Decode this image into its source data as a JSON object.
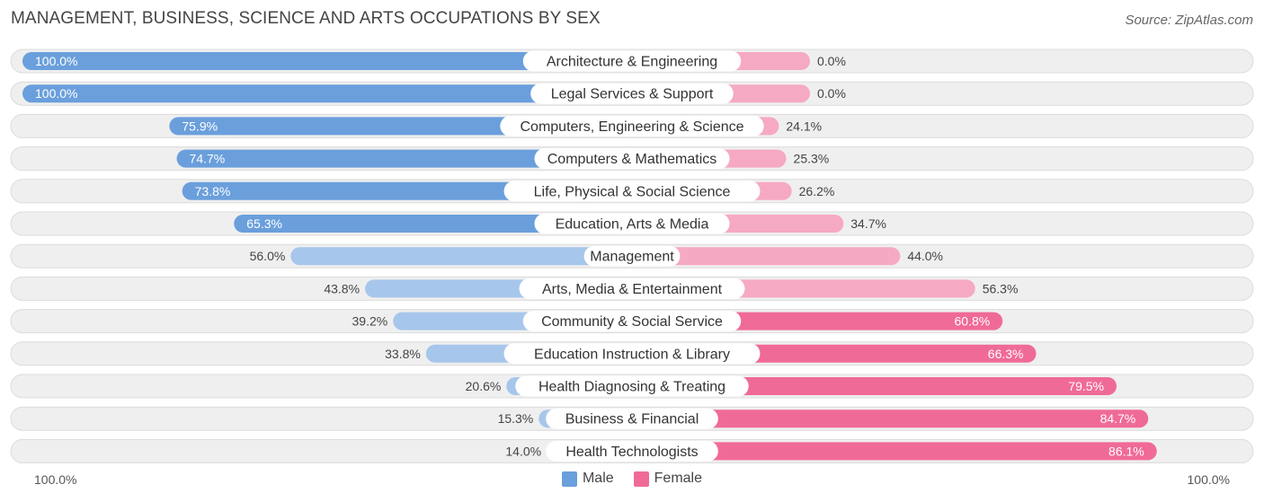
{
  "title": "MANAGEMENT, BUSINESS, SCIENCE AND ARTS OCCUPATIONS BY SEX",
  "source": "Source: ZipAtlas.com",
  "colors": {
    "male": "#6a9fdc",
    "male_light": "#a7c6eb",
    "female": "#f06a97",
    "female_light": "#f6a9c3",
    "row_bg": "#efefef",
    "row_border": "#dcdcdc"
  },
  "axis": {
    "left_label": "100.0%",
    "right_label": "100.0%"
  },
  "legend": [
    {
      "label": "Male",
      "color": "#6a9fdc"
    },
    {
      "label": "Female",
      "color": "#f06a97"
    }
  ],
  "chart_data": {
    "type": "bar",
    "orientation": "horizontal-diverging",
    "title": "MANAGEMENT, BUSINESS, SCIENCE AND ARTS OCCUPATIONS BY SEX",
    "xlim": [
      -100,
      100
    ],
    "categories": [
      "Architecture & Engineering",
      "Legal Services & Support",
      "Computers, Engineering & Science",
      "Computers & Mathematics",
      "Life, Physical & Social Science",
      "Education, Arts & Media",
      "Management",
      "Arts, Media & Entertainment",
      "Community & Social Service",
      "Education Instruction & Library",
      "Health Diagnosing & Treating",
      "Business & Financial",
      "Health Technologists"
    ],
    "series": [
      {
        "name": "Male",
        "values": [
          100.0,
          100.0,
          75.9,
          74.7,
          73.8,
          65.3,
          56.0,
          43.8,
          39.2,
          33.8,
          20.6,
          15.3,
          14.0
        ],
        "labels": [
          "100.0%",
          "100.0%",
          "75.9%",
          "74.7%",
          "73.8%",
          "65.3%",
          "56.0%",
          "43.8%",
          "39.2%",
          "33.8%",
          "20.6%",
          "15.3%",
          "14.0%"
        ]
      },
      {
        "name": "Female",
        "values": [
          0.0,
          0.0,
          24.1,
          25.3,
          26.2,
          34.7,
          44.0,
          56.3,
          60.8,
          66.3,
          79.5,
          84.7,
          86.1
        ],
        "labels": [
          "0.0%",
          "0.0%",
          "24.1%",
          "25.3%",
          "26.2%",
          "34.7%",
          "44.0%",
          "56.3%",
          "60.8%",
          "66.3%",
          "79.5%",
          "84.7%",
          "86.1%"
        ]
      }
    ],
    "legend_position": "bottom-center"
  }
}
